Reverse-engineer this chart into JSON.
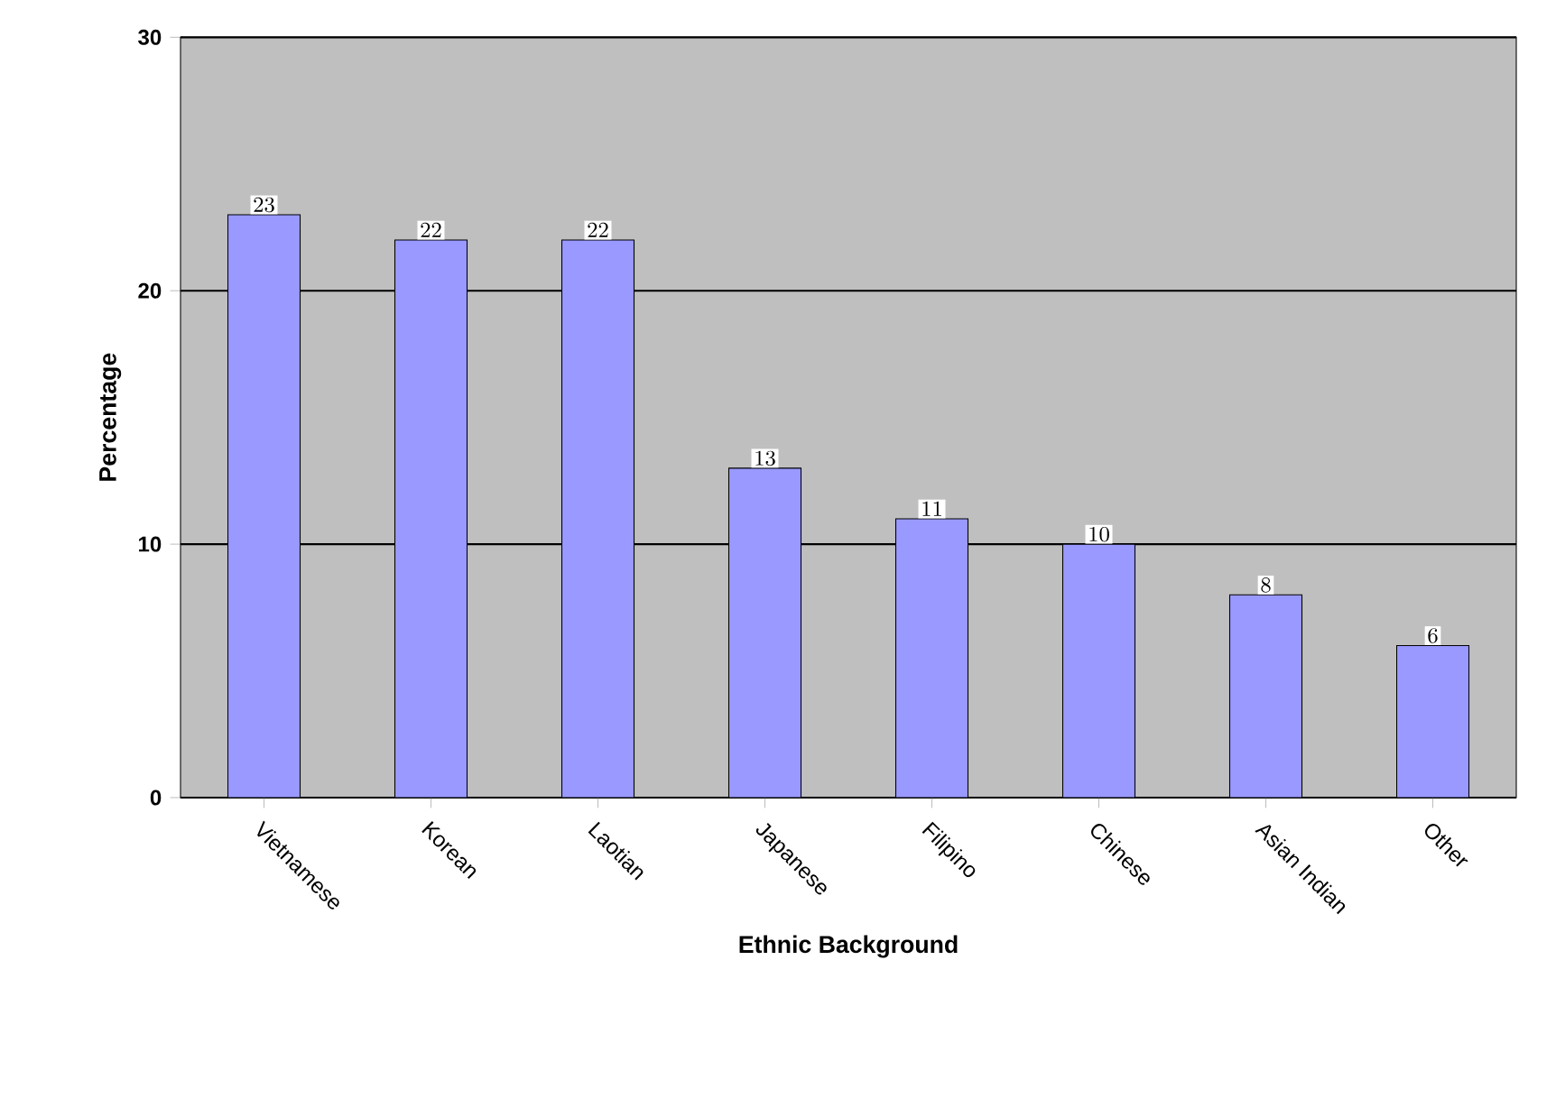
{
  "chart_data": {
    "type": "bar",
    "xlabel": "Ethnic Background",
    "ylabel": "Percentage",
    "categories": [
      "Vietnamese",
      "Korean",
      "Laotian",
      "Japanese",
      "Filipino",
      "Chinese",
      "Asian Indian",
      "Other"
    ],
    "values": [
      23,
      22,
      22,
      13,
      11,
      10,
      8,
      6
    ],
    "color": "#9999ff",
    "ylim": [
      0,
      30
    ],
    "yticks": [
      0,
      10,
      20,
      30
    ],
    "grid": "y",
    "data_labels": true
  }
}
